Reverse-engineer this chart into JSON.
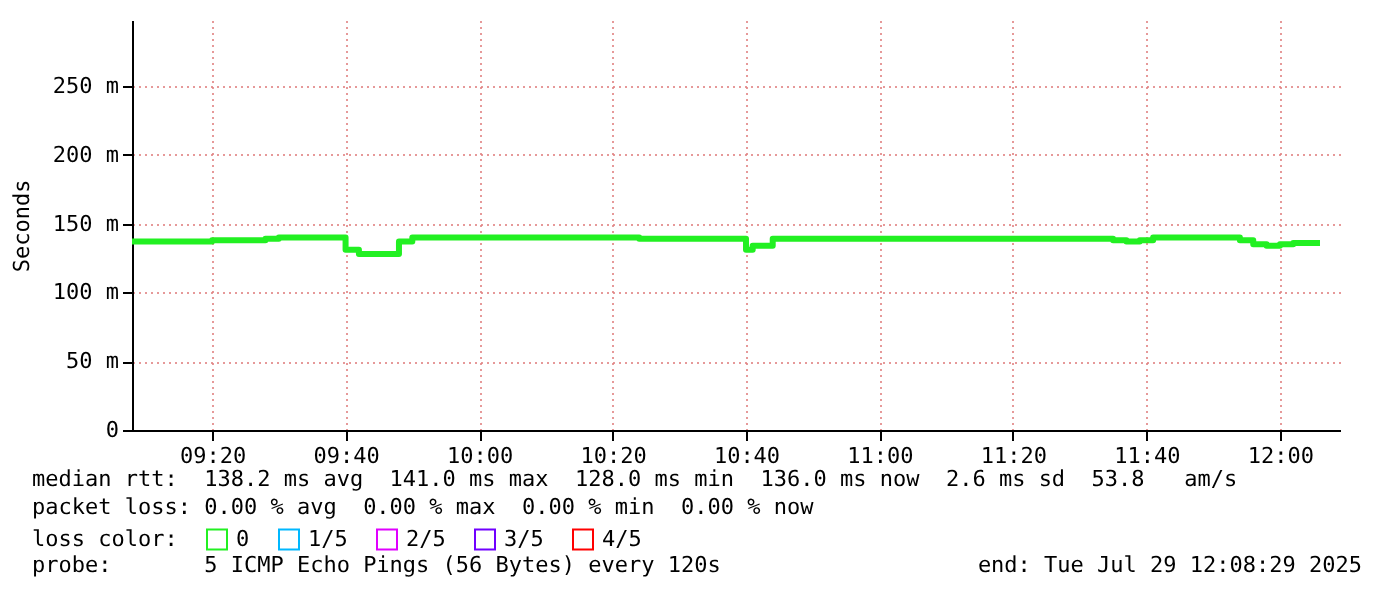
{
  "chart_data": {
    "type": "step",
    "ylabel": "Seconds",
    "x": [
      "2025-07-29T09:08",
      "2025-07-29T09:20",
      "2025-07-29T09:28",
      "2025-07-29T09:30",
      "2025-07-29T09:40",
      "2025-07-29T09:42",
      "2025-07-29T09:48",
      "2025-07-29T09:50",
      "2025-07-29T10:24",
      "2025-07-29T10:40",
      "2025-07-29T10:41",
      "2025-07-29T10:44",
      "2025-07-29T11:35",
      "2025-07-29T11:37",
      "2025-07-29T11:39",
      "2025-07-29T11:41",
      "2025-07-29T11:54",
      "2025-07-29T11:56",
      "2025-07-29T11:58",
      "2025-07-29T12:00",
      "2025-07-29T12:02",
      "2025-07-29T12:06"
    ],
    "series": [
      {
        "name": "0",
        "color": "#22f022",
        "values": [
          137,
          138,
          139,
          140,
          131,
          128,
          137,
          140,
          139,
          131,
          134,
          139,
          138,
          137,
          138,
          140,
          138,
          135,
          134,
          135,
          136,
          136
        ]
      },
      {
        "name": "1/5",
        "color": "#00b8ff",
        "values": [
          null,
          null,
          null,
          null,
          null,
          null,
          null,
          null,
          null,
          null,
          null,
          null,
          null,
          null,
          null,
          null,
          null,
          null,
          null,
          null,
          null,
          null
        ]
      },
      {
        "name": "2/5",
        "color": "#e000ff",
        "values": [
          null,
          null,
          null,
          null,
          null,
          null,
          null,
          null,
          null,
          null,
          null,
          null,
          null,
          null,
          null,
          null,
          null,
          null,
          null,
          null,
          null,
          null
        ]
      },
      {
        "name": "3/5",
        "color": "#7000ff",
        "values": [
          null,
          null,
          null,
          null,
          null,
          null,
          null,
          null,
          null,
          null,
          null,
          null,
          null,
          null,
          null,
          null,
          null,
          null,
          null,
          null,
          null,
          null
        ]
      },
      {
        "name": "4/5",
        "color": "#ff0000",
        "values": [
          null,
          null,
          null,
          null,
          null,
          null,
          null,
          null,
          null,
          null,
          null,
          null,
          null,
          null,
          null,
          null,
          null,
          null,
          null,
          null,
          null,
          null
        ]
      }
    ],
    "legend_title": "loss color:",
    "legend": "bottom",
    "xlim": [
      "2025-07-29T09:08",
      "2025-07-29T12:09"
    ],
    "xticks": [
      {
        "value": "2025-07-29T09:20",
        "label": "09:20"
      },
      {
        "value": "2025-07-29T09:40",
        "label": "09:40"
      },
      {
        "value": "2025-07-29T10:00",
        "label": "10:00"
      },
      {
        "value": "2025-07-29T10:20",
        "label": "10:20"
      },
      {
        "value": "2025-07-29T10:40",
        "label": "10:40"
      },
      {
        "value": "2025-07-29T11:00",
        "label": "11:00"
      },
      {
        "value": "2025-07-29T11:20",
        "label": "11:20"
      },
      {
        "value": "2025-07-29T11:40",
        "label": "11:40"
      },
      {
        "value": "2025-07-29T12:00",
        "label": "12:00"
      }
    ],
    "ylim": [
      0,
      298
    ],
    "yticks": [
      0,
      {
        "value": 50,
        "label": "50 m"
      },
      {
        "value": 100,
        "label": "100 m"
      },
      {
        "value": 150,
        "label": "150 m"
      },
      {
        "value": 200,
        "label": "200 m"
      },
      {
        "value": 250,
        "label": "250 m"
      }
    ],
    "grid": true,
    "annotations": [
      "median rtt:  138.2 ms avg  141.0 ms max  128.0 ms min  136.0 ms now  2.6 ms sd  53.8   am/s",
      "packet loss: 0.00 % avg  0.00 % max  0.00 % min  0.00 % now",
      "probe:       5 ICMP Echo Pings (56 Bytes) every 120s",
      "end: Tue Jul 29 12:08:29 2025"
    ]
  }
}
